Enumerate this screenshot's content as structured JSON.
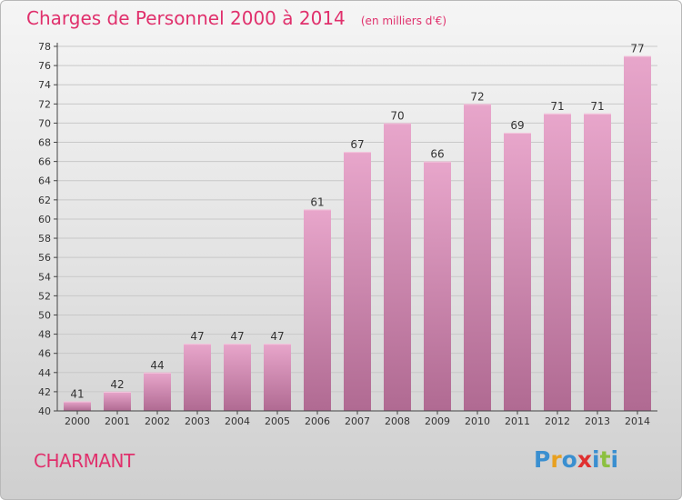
{
  "chart_data": {
    "type": "bar",
    "title": "Charges de Personnel 2000 à 2014",
    "subtitle": "(en milliers d'€)",
    "categories": [
      "2000",
      "2001",
      "2002",
      "2003",
      "2004",
      "2005",
      "2006",
      "2007",
      "2008",
      "2009",
      "2010",
      "2011",
      "2012",
      "2013",
      "2014"
    ],
    "values": [
      41,
      42,
      44,
      47,
      47,
      47,
      61,
      67,
      70,
      66,
      72,
      69,
      71,
      71,
      77
    ],
    "ylim": [
      40,
      78
    ],
    "yticks": [
      40,
      42,
      44,
      46,
      48,
      50,
      52,
      54,
      56,
      58,
      60,
      62,
      64,
      66,
      68,
      70,
      72,
      74,
      76,
      78
    ],
    "grid": true,
    "xlabel": "",
    "ylabel": ""
  },
  "place_name": "CHARMANT",
  "logo": {
    "text": "Proxiti",
    "letters": [
      {
        "ch": "P",
        "color": "#3a8fd0"
      },
      {
        "ch": "r",
        "color": "#e8a020"
      },
      {
        "ch": "o",
        "color": "#3a8fd0"
      },
      {
        "ch": "x",
        "color": "#e03030"
      },
      {
        "ch": "i",
        "color": "#3a8fd0"
      },
      {
        "ch": "t",
        "color": "#8cc040"
      },
      {
        "ch": "i",
        "color": "#3a8fd0"
      }
    ]
  },
  "colors": {
    "title": "#e0306c",
    "bar_light": "#e8a6cb",
    "bar_dark": "#b06a92",
    "grid": "#c8c8c8",
    "axis": "#444444"
  }
}
